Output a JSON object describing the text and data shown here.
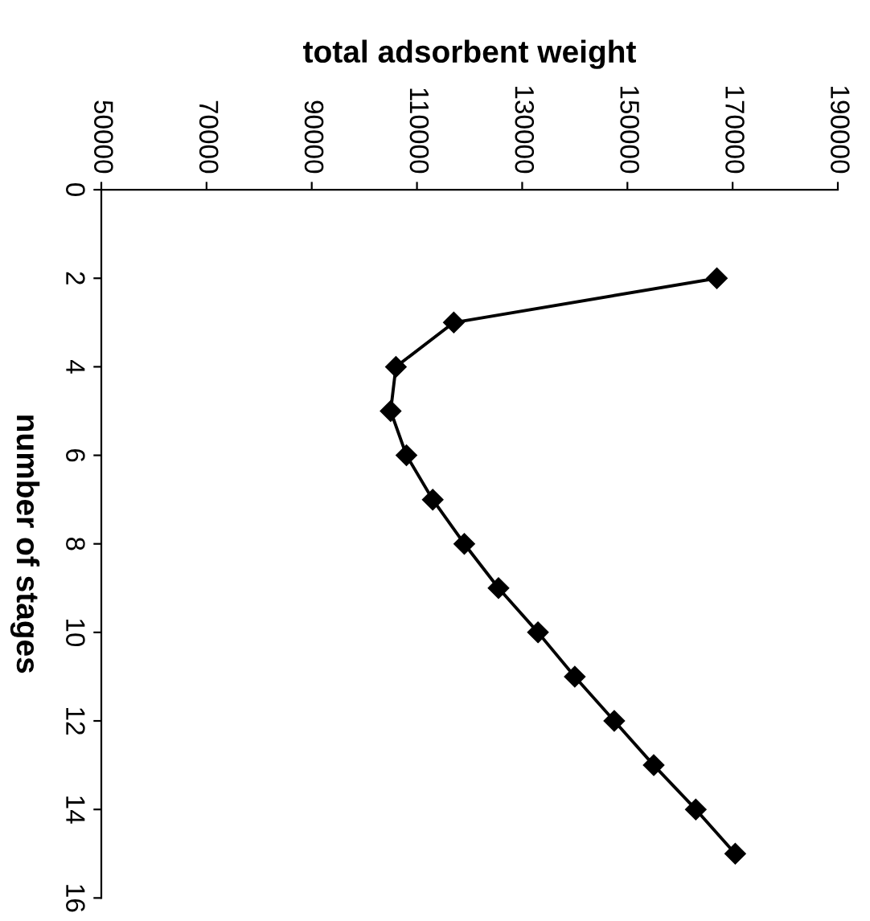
{
  "chart_data": {
    "type": "line",
    "xlabel": "total adsorbent weight",
    "ylabel": "number of stages",
    "series": [
      {
        "color": "#000000",
        "x": [
          167000,
          117000,
          106000,
          105000,
          108000,
          113000,
          119000,
          125500,
          133000,
          140000,
          147500,
          155000,
          163000,
          170500
        ],
        "values": [
          2,
          3,
          4,
          5,
          6,
          7,
          8,
          9,
          10,
          11,
          12,
          13,
          14,
          15
        ]
      }
    ],
    "xlim": [
      50000,
      190000
    ],
    "xticks": [
      50000,
      70000,
      90000,
      110000,
      130000,
      150000,
      170000,
      190000
    ],
    "ylim": [
      16,
      0
    ],
    "yticks": [
      0,
      2,
      4,
      6,
      8,
      10,
      12,
      14,
      16
    ],
    "marker": "diamond",
    "line_style": "solid",
    "grid": false,
    "legend": false
  }
}
